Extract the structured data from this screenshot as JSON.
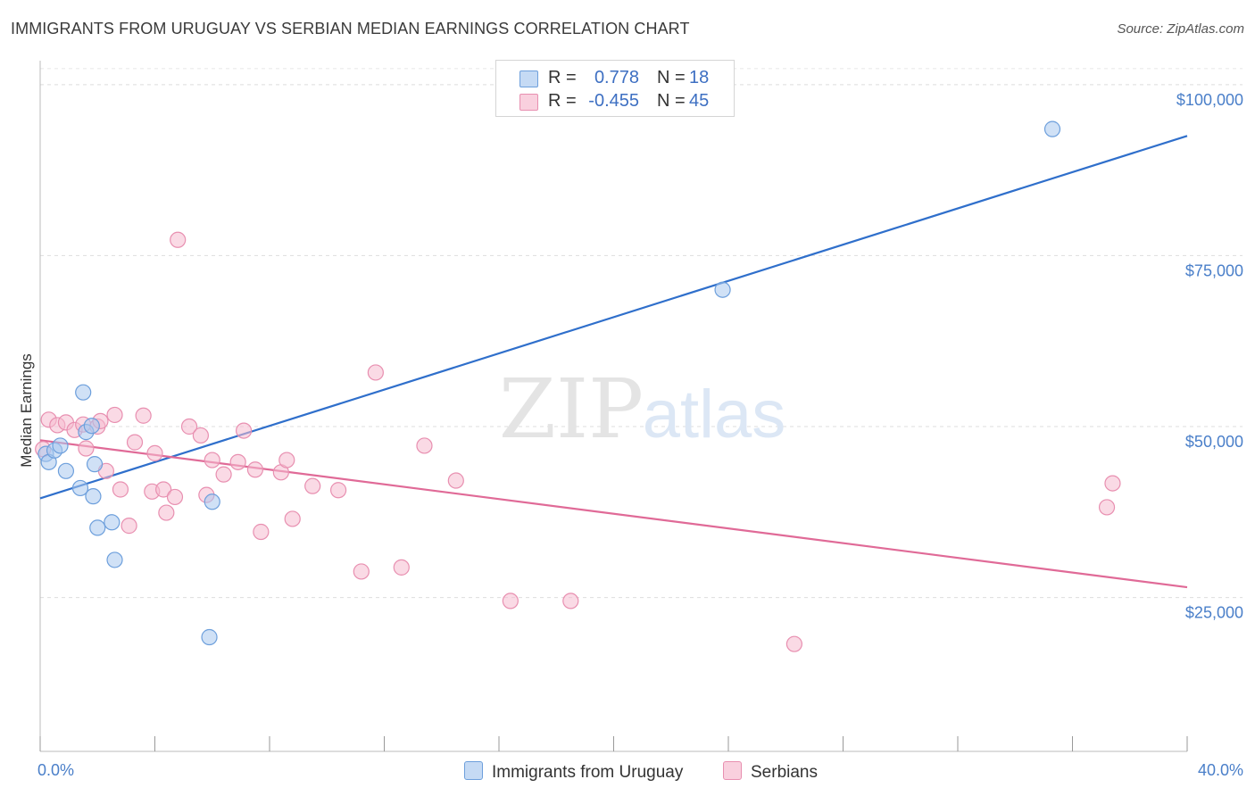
{
  "title": "IMMIGRANTS FROM URUGUAY VS SERBIAN MEDIAN EARNINGS CORRELATION CHART",
  "source": "Source: ZipAtlas.com",
  "watermark": {
    "zip": "ZIP",
    "atlas": "atlas"
  },
  "colors": {
    "blue_fill": "#a9c8ee",
    "blue_stroke": "#6d9fdc",
    "blue_line": "#2f6fcb",
    "pink_fill": "#f6bcd0",
    "pink_stroke": "#e88fb0",
    "pink_line": "#e06a97",
    "tick_text": "#4a7fc9"
  },
  "legend": {
    "rows": [
      {
        "r_label": "R =",
        "r_value": "0.778",
        "n_label": "N =",
        "n_value": "18"
      },
      {
        "r_label": "R =",
        "r_value": "-0.455",
        "n_label": "N =",
        "n_value": "45"
      }
    ]
  },
  "chart_data": {
    "type": "scatter",
    "title": "IMMIGRANTS FROM URUGUAY VS SERBIAN MEDIAN EARNINGS CORRELATION CHART",
    "xlabel": "",
    "ylabel": "Median Earnings",
    "xlim": [
      0,
      40
    ],
    "ylim": [
      2500,
      103500
    ],
    "x_tick_labels": [
      "0.0%",
      "40.0%"
    ],
    "y_ticks": [
      25000,
      50000,
      75000,
      100000
    ],
    "y_tick_labels": [
      "$25,000",
      "$50,000",
      "$75,000",
      "$100,000"
    ],
    "grid": true,
    "legend_position": "top-center",
    "series": [
      {
        "name": "Immigrants from Uruguay",
        "color": "#a9c8ee",
        "points": [
          [
            0.2,
            46000
          ],
          [
            0.3,
            44800
          ],
          [
            0.5,
            46500
          ],
          [
            0.7,
            47200
          ],
          [
            0.9,
            43500
          ],
          [
            1.4,
            41000
          ],
          [
            1.5,
            55000
          ],
          [
            1.6,
            49200
          ],
          [
            1.8,
            50100
          ],
          [
            1.9,
            44500
          ],
          [
            1.85,
            39800
          ],
          [
            2.0,
            35200
          ],
          [
            2.5,
            36000
          ],
          [
            2.6,
            30500
          ],
          [
            6.0,
            39000
          ],
          [
            5.9,
            19200
          ],
          [
            23.8,
            70000
          ],
          [
            35.3,
            93500
          ]
        ],
        "trend": [
          [
            0,
            39500
          ],
          [
            40,
            92500
          ]
        ]
      },
      {
        "name": "Serbians",
        "color": "#f6bcd0",
        "points": [
          [
            0.1,
            46700
          ],
          [
            0.3,
            51000
          ],
          [
            0.6,
            50200
          ],
          [
            0.9,
            50600
          ],
          [
            1.2,
            49500
          ],
          [
            1.5,
            50300
          ],
          [
            1.6,
            46800
          ],
          [
            2.0,
            50000
          ],
          [
            2.1,
            50800
          ],
          [
            2.3,
            43500
          ],
          [
            2.6,
            51700
          ],
          [
            2.8,
            40800
          ],
          [
            3.1,
            35500
          ],
          [
            3.3,
            47700
          ],
          [
            3.6,
            51600
          ],
          [
            3.9,
            40500
          ],
          [
            4.0,
            46100
          ],
          [
            4.3,
            40800
          ],
          [
            4.4,
            37400
          ],
          [
            4.7,
            39700
          ],
          [
            4.8,
            77300
          ],
          [
            5.2,
            50000
          ],
          [
            5.6,
            48700
          ],
          [
            5.8,
            40000
          ],
          [
            6.0,
            45100
          ],
          [
            6.4,
            43000
          ],
          [
            6.9,
            44800
          ],
          [
            7.1,
            49400
          ],
          [
            7.5,
            43700
          ],
          [
            7.7,
            34600
          ],
          [
            8.4,
            43300
          ],
          [
            8.6,
            45100
          ],
          [
            8.8,
            36500
          ],
          [
            9.5,
            41300
          ],
          [
            10.4,
            40700
          ],
          [
            11.2,
            28800
          ],
          [
            11.7,
            57900
          ],
          [
            12.6,
            29400
          ],
          [
            13.4,
            47200
          ],
          [
            14.5,
            42100
          ],
          [
            16.4,
            24500
          ],
          [
            18.5,
            24500
          ],
          [
            26.3,
            18200
          ],
          [
            37.2,
            38200
          ],
          [
            37.4,
            41700
          ]
        ],
        "trend": [
          [
            0,
            48000
          ],
          [
            40,
            26500
          ]
        ]
      }
    ]
  }
}
